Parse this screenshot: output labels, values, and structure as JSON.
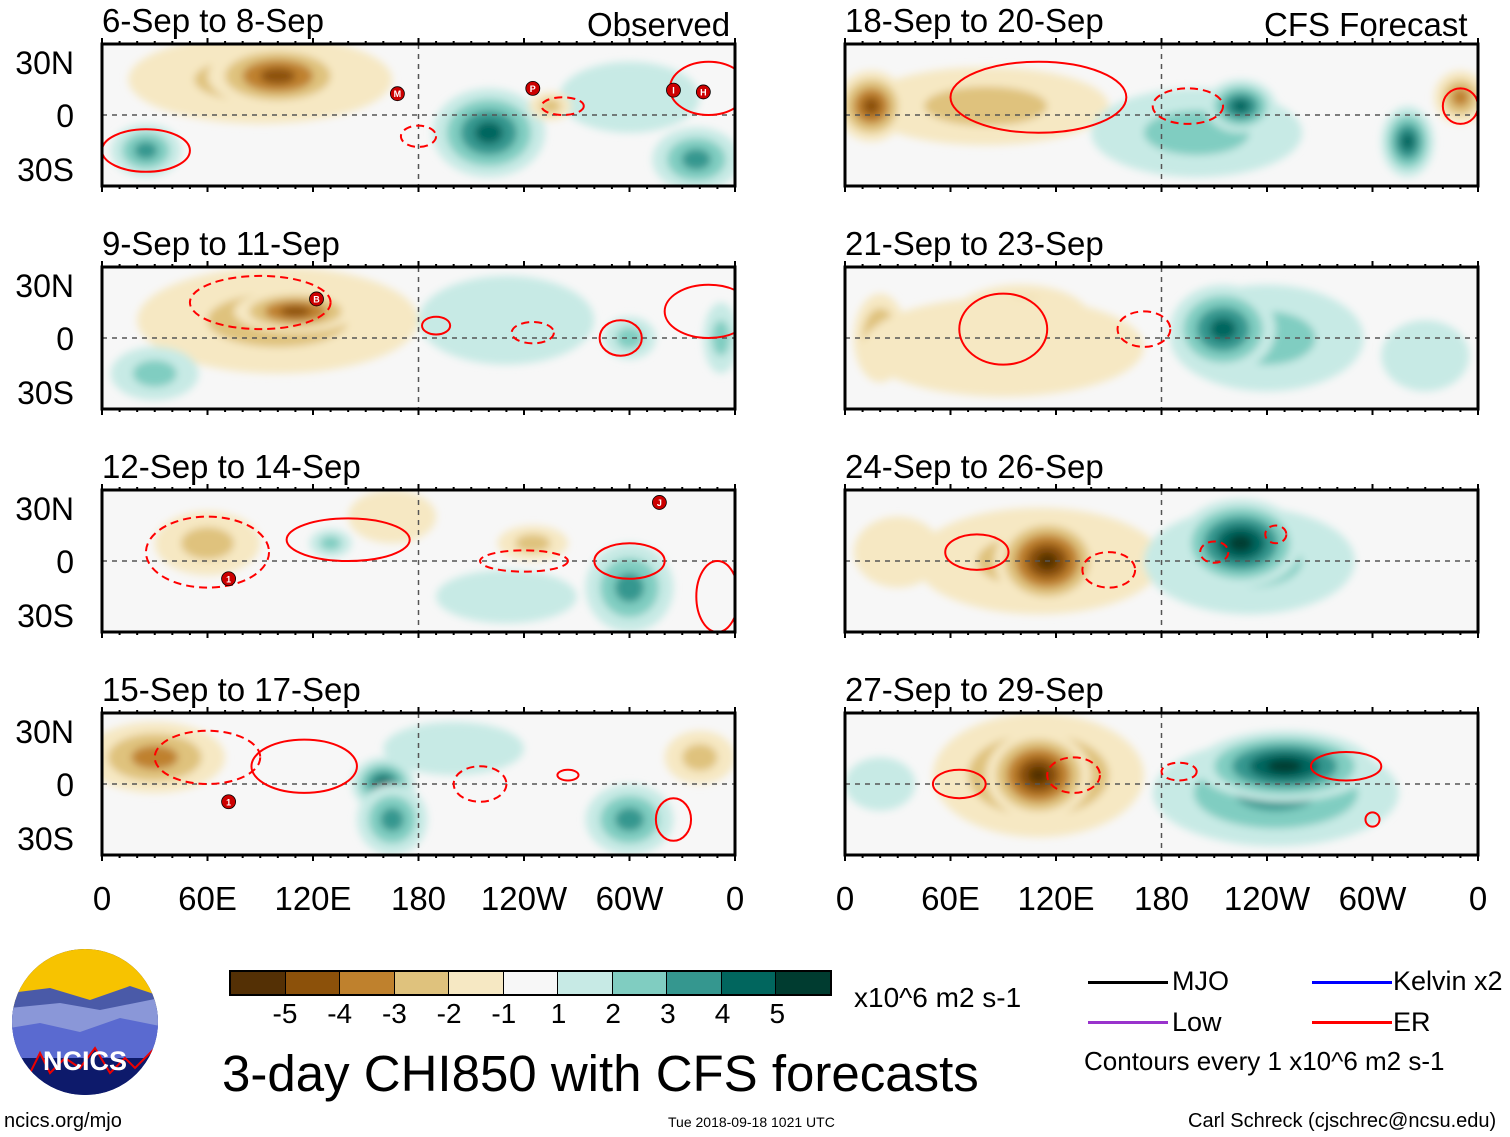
{
  "headers": {
    "left": "Observed",
    "right": "CFS Forecast"
  },
  "y_labels": [
    "30N",
    "0",
    "30S"
  ],
  "x_labels": [
    "0",
    "60E",
    "120E",
    "180",
    "120W",
    "60W",
    "0"
  ],
  "colors": {
    "levels": {
      "-5": "#543005",
      "-4": "#8c510a",
      "-3": "#bf812d",
      "-2": "#dfc27d",
      "-1": "#f6e8c3",
      "1": "#c7eae5",
      "2": "#80cdc1",
      "3": "#35978f",
      "4": "#01665e",
      "5": "#003c30"
    },
    "background": "#f7f7f7",
    "contour": "#ff0000",
    "storm": "#cc0000"
  },
  "panels": [
    {
      "title": "6-Sep to 8-Sep",
      "col": "left",
      "row": 0,
      "fields": [
        [
          90,
          20,
          75,
          25,
          -2
        ],
        [
          100,
          22,
          40,
          18,
          -4
        ],
        [
          220,
          -10,
          32,
          25,
          4
        ],
        [
          25,
          -20,
          20,
          15,
          3
        ],
        [
          338,
          -25,
          25,
          18,
          3
        ],
        [
          300,
          10,
          40,
          20,
          1
        ],
        [
          255,
          5,
          12,
          8,
          -2
        ]
      ],
      "contours": [
        [
          25,
          -20,
          25,
          12,
          "solid"
        ],
        [
          345,
          15,
          22,
          15,
          "solid"
        ],
        [
          180,
          -12,
          10,
          6,
          "dashed"
        ],
        [
          262,
          5,
          12,
          5,
          "dashed"
        ]
      ],
      "storms": [
        [
          "M",
          168,
          12
        ],
        [
          "P",
          245,
          15
        ],
        [
          "I",
          325,
          14
        ],
        [
          "H",
          342,
          13
        ]
      ]
    },
    {
      "title": "9-Sep to 11-Sep",
      "col": "left",
      "row": 1,
      "fields": [
        [
          100,
          10,
          80,
          30,
          -2
        ],
        [
          110,
          15,
          35,
          12,
          -4
        ],
        [
          30,
          -20,
          25,
          15,
          2
        ],
        [
          230,
          10,
          50,
          25,
          1
        ],
        [
          300,
          0,
          15,
          12,
          2
        ],
        [
          352,
          0,
          10,
          20,
          2
        ]
      ],
      "contours": [
        [
          90,
          20,
          40,
          15,
          "dashed"
        ],
        [
          190,
          7,
          8,
          5,
          "solid"
        ],
        [
          245,
          3,
          12,
          6,
          "dashed"
        ],
        [
          295,
          0,
          12,
          10,
          "solid"
        ],
        [
          345,
          15,
          25,
          15,
          "solid"
        ]
      ],
      "storms": [
        [
          "B",
          122,
          22
        ]
      ]
    },
    {
      "title": "12-Sep to 14-Sep",
      "col": "left",
      "row": 2,
      "fields": [
        [
          60,
          10,
          30,
          18,
          -2
        ],
        [
          165,
          25,
          25,
          15,
          -1
        ],
        [
          245,
          10,
          20,
          10,
          -2
        ],
        [
          300,
          -15,
          25,
          25,
          3
        ],
        [
          230,
          -20,
          40,
          15,
          1
        ],
        [
          130,
          10,
          12,
          8,
          2
        ]
      ],
      "contours": [
        [
          140,
          12,
          35,
          12,
          "solid"
        ],
        [
          300,
          0,
          20,
          10,
          "solid"
        ],
        [
          350,
          -20,
          12,
          20,
          "solid"
        ],
        [
          60,
          5,
          35,
          20,
          "dashed"
        ],
        [
          240,
          0,
          25,
          6,
          "dashed"
        ]
      ],
      "storms": [
        [
          "1",
          72,
          -10
        ],
        [
          "J",
          317,
          33
        ]
      ]
    },
    {
      "title": "15-Sep to 17-Sep",
      "col": "left",
      "row": 3,
      "fields": [
        [
          30,
          15,
          40,
          20,
          -3
        ],
        [
          160,
          0,
          18,
          15,
          4
        ],
        [
          165,
          -20,
          20,
          20,
          3
        ],
        [
          300,
          -20,
          25,
          20,
          3
        ],
        [
          200,
          20,
          40,
          15,
          1
        ],
        [
          340,
          15,
          20,
          15,
          -2
        ]
      ],
      "contours": [
        [
          115,
          10,
          30,
          15,
          "solid"
        ],
        [
          325,
          -20,
          10,
          12,
          "solid"
        ],
        [
          215,
          0,
          15,
          10,
          "dashed"
        ],
        [
          60,
          15,
          30,
          15,
          "dashed"
        ],
        [
          265,
          5,
          6,
          3,
          "solid"
        ]
      ],
      "storms": [
        [
          "1",
          72,
          -10
        ]
      ]
    },
    {
      "title": "18-Sep to 20-Sep",
      "col": "right",
      "row": 0,
      "fields": [
        [
          80,
          5,
          70,
          22,
          -2
        ],
        [
          15,
          5,
          20,
          20,
          -4
        ],
        [
          350,
          10,
          15,
          15,
          -3
        ],
        [
          200,
          -10,
          60,
          25,
          2
        ],
        [
          225,
          5,
          20,
          15,
          4
        ],
        [
          320,
          -15,
          15,
          20,
          4
        ]
      ],
      "contours": [
        [
          110,
          10,
          50,
          20,
          "solid"
        ],
        [
          195,
          5,
          20,
          10,
          "dashed"
        ],
        [
          350,
          5,
          10,
          10,
          "solid"
        ]
      ],
      "storms": []
    },
    {
      "title": "21-Sep to 23-Sep",
      "col": "right",
      "row": 1,
      "fields": [
        [
          100,
          10,
          40,
          20,
          -3
        ],
        [
          20,
          0,
          15,
          25,
          -3
        ],
        [
          90,
          -5,
          80,
          28,
          -1
        ],
        [
          240,
          0,
          55,
          30,
          2
        ],
        [
          215,
          5,
          30,
          25,
          4
        ],
        [
          330,
          -10,
          25,
          20,
          1
        ]
      ],
      "contours": [
        [
          90,
          5,
          25,
          20,
          "solid"
        ],
        [
          170,
          5,
          15,
          10,
          "dashed"
        ]
      ],
      "storms": []
    },
    {
      "title": "24-Sep to 26-Sep",
      "col": "right",
      "row": 2,
      "fields": [
        [
          110,
          0,
          70,
          30,
          -2
        ],
        [
          115,
          0,
          30,
          25,
          -5
        ],
        [
          30,
          5,
          25,
          20,
          -1
        ],
        [
          230,
          0,
          60,
          30,
          2
        ],
        [
          225,
          10,
          35,
          25,
          5
        ]
      ],
      "contours": [
        [
          75,
          5,
          18,
          10,
          "solid"
        ],
        [
          150,
          -5,
          15,
          10,
          "dashed"
        ],
        [
          210,
          5,
          8,
          6,
          "dashed"
        ],
        [
          245,
          15,
          6,
          5,
          "dashed"
        ]
      ],
      "storms": []
    },
    {
      "title": "27-Sep to 29-Sep",
      "col": "right",
      "row": 3,
      "fields": [
        [
          110,
          5,
          60,
          35,
          -3
        ],
        [
          110,
          5,
          30,
          25,
          -5
        ],
        [
          245,
          -5,
          70,
          30,
          3
        ],
        [
          250,
          10,
          50,
          20,
          5
        ],
        [
          20,
          0,
          20,
          15,
          1
        ]
      ],
      "contours": [
        [
          65,
          0,
          15,
          8,
          "solid"
        ],
        [
          130,
          5,
          15,
          10,
          "dashed"
        ],
        [
          285,
          10,
          20,
          8,
          "solid"
        ],
        [
          190,
          7,
          10,
          5,
          "dashed"
        ],
        [
          300,
          -20,
          4,
          4,
          "solid"
        ]
      ],
      "storms": []
    }
  ],
  "colorbar": {
    "labels": [
      "-5",
      "-4",
      "-3",
      "-2",
      "-1",
      "1",
      "2",
      "3",
      "4",
      "5"
    ],
    "units": "x10^6 m2 s-1"
  },
  "legend": {
    "mjo": "MJO",
    "low": "Low",
    "kelvin": "Kelvin x2",
    "er": "ER",
    "contours_note": "Contours every 1 x10^6 m2 s-1",
    "mjo_color": "#000000",
    "low_color": "#9933cc",
    "kelvin_color": "#0000ff",
    "er_color": "#ff0000"
  },
  "logo": {
    "text": "NCICS"
  },
  "title": "3-day CHI850 with CFS forecasts",
  "footer": {
    "url": "ncics.org/mjo",
    "timestamp": "Tue 2018-09-18 1021 UTC",
    "author": "Carl Schreck (cjschrec@ncsu.edu)"
  }
}
